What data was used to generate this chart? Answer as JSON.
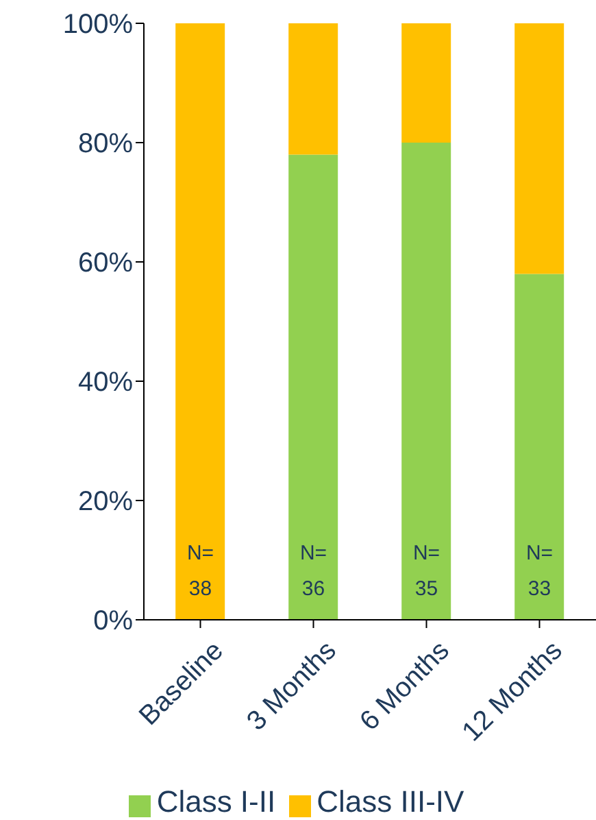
{
  "chart_data": {
    "type": "bar",
    "stacked": true,
    "categories": [
      "Baseline",
      "3 Months",
      "6 Months",
      "12 Months"
    ],
    "series": [
      {
        "name": "Class I-II",
        "color": "#92d050",
        "values": [
          0,
          78,
          80,
          58
        ]
      },
      {
        "name": "Class III-IV",
        "color": "#ffc000",
        "values": [
          100,
          22,
          20,
          42
        ]
      }
    ],
    "ylim": [
      0,
      100
    ],
    "yticks": [
      {
        "value": 0,
        "label": "0%"
      },
      {
        "value": 20,
        "label": "20%"
      },
      {
        "value": 40,
        "label": "40%"
      },
      {
        "value": 60,
        "label": "60%"
      },
      {
        "value": 80,
        "label": "80%"
      },
      {
        "value": 100,
        "label": "100%"
      }
    ],
    "grid": false,
    "legend": "bottom",
    "annotations": [
      "N= 38",
      "N= 36",
      "N= 35",
      "N= 33"
    ]
  }
}
